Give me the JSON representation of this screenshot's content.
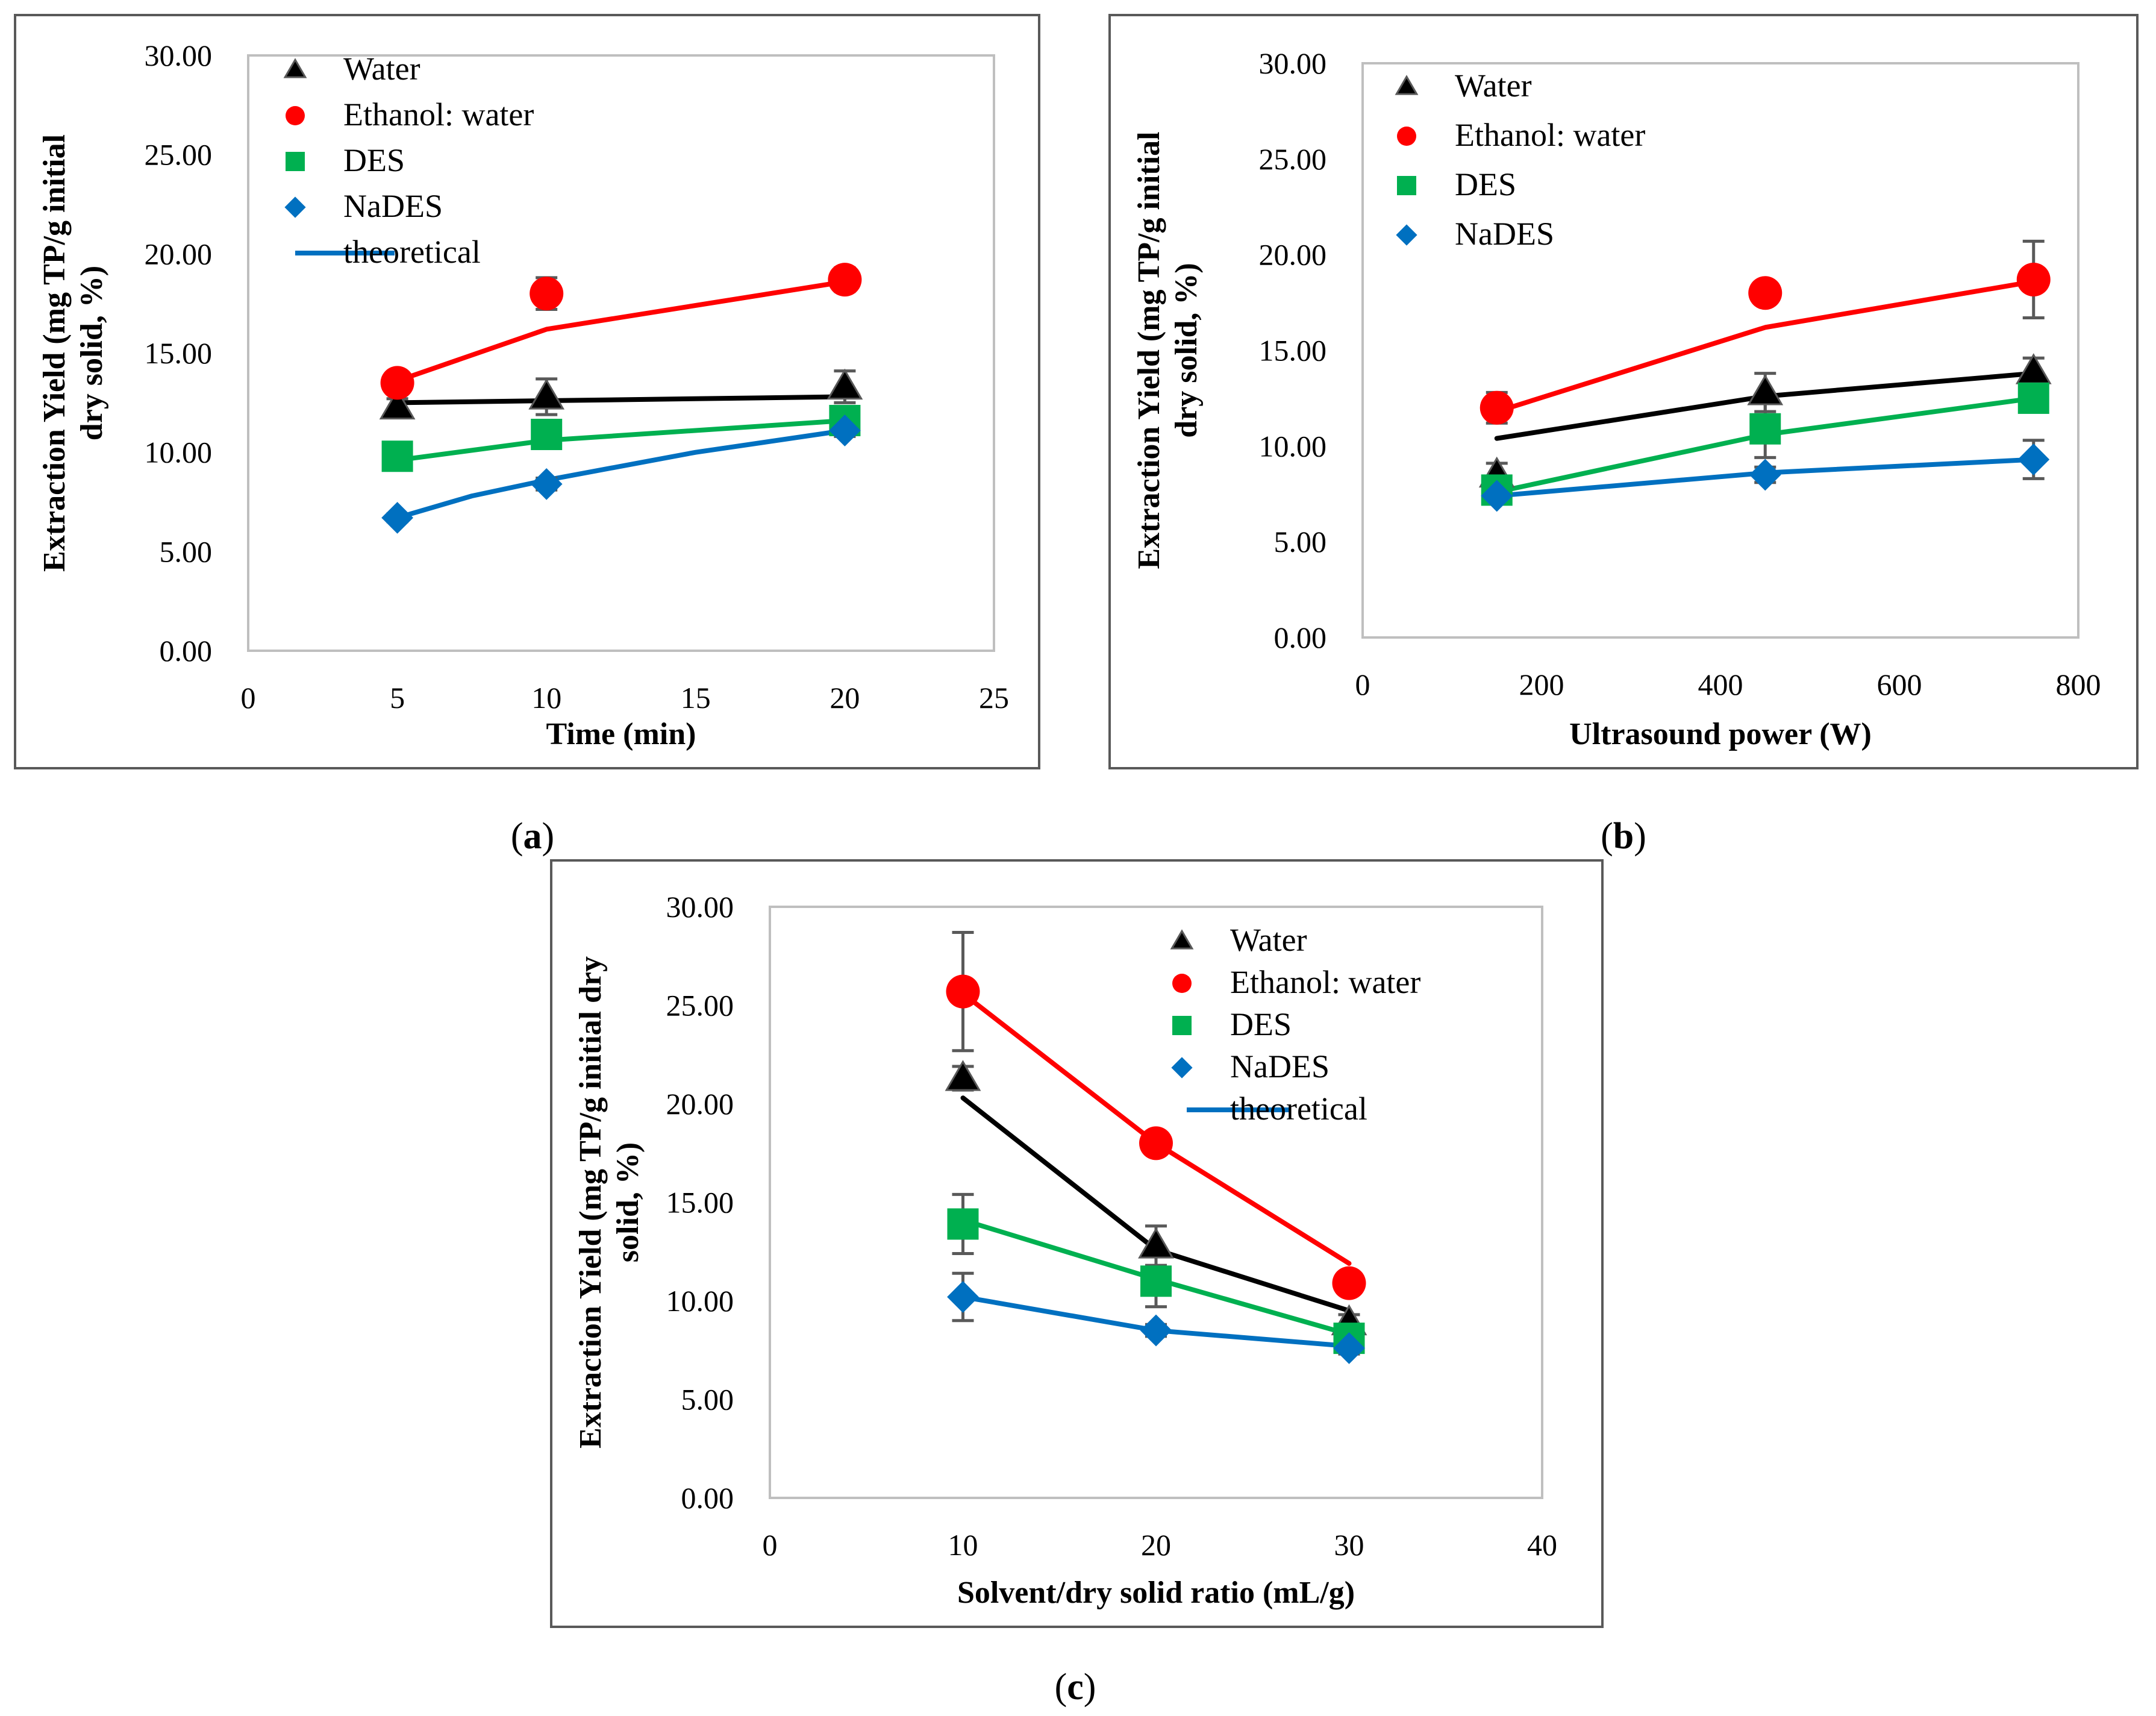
{
  "colors": {
    "water": "#000000",
    "ethanol": "#ff0000",
    "des": "#00b050",
    "nades": "#0070c0",
    "frame": "#595959",
    "plot_border": "#bfbfbf",
    "errorbar": "#595959"
  },
  "series_names": [
    "Water",
    "Ethanol: water",
    "DES",
    "NaDES"
  ],
  "theoretical_label": "theoretical",
  "chart_data": [
    {
      "id": "a",
      "type": "scatter",
      "panel_label": "a",
      "xlabel": "Time (min)",
      "ylabel_lines": [
        "Extraction Yield (mg TP/g  initial",
        "dry solid, %)"
      ],
      "xlim": [
        0,
        25
      ],
      "xticks": [
        0,
        5,
        10,
        15,
        20,
        25
      ],
      "ylim": [
        0,
        30
      ],
      "yticks": [
        "0.00",
        "5.00",
        "10.00",
        "15.00",
        "20.00",
        "25.00",
        "30.00"
      ],
      "show_theoretical_in_legend": true,
      "series": [
        {
          "name": "Water",
          "key": "water",
          "marker": "triangle",
          "x": [
            5,
            10,
            20
          ],
          "y": [
            12.3,
            12.8,
            13.3
          ],
          "err": [
            0.4,
            0.9,
            0.8
          ],
          "fit": [
            [
              5,
              12.5
            ],
            [
              10,
              12.6
            ],
            [
              20,
              12.8
            ]
          ]
        },
        {
          "name": "Ethanol: water",
          "key": "ethanol",
          "marker": "circle",
          "x": [
            5,
            10,
            20
          ],
          "y": [
            13.5,
            18.0,
            18.7
          ],
          "err": [
            0.3,
            0.8,
            0.6
          ],
          "fit": [
            [
              5,
              13.6
            ],
            [
              10,
              16.2
            ],
            [
              20,
              18.6
            ]
          ]
        },
        {
          "name": "DES",
          "key": "des",
          "marker": "square",
          "x": [
            5,
            10,
            20
          ],
          "y": [
            9.8,
            10.9,
            11.6
          ],
          "err": [
            0.3,
            0.5,
            0.4
          ],
          "fit": [
            [
              5,
              9.6
            ],
            [
              10,
              10.6
            ],
            [
              20,
              11.6
            ]
          ]
        },
        {
          "name": "NaDES",
          "key": "nades",
          "marker": "diamond",
          "x": [
            5,
            10,
            20
          ],
          "y": [
            6.7,
            8.4,
            11.1
          ],
          "err": [
            0.2,
            0.3,
            0.3
          ],
          "fit": [
            [
              5,
              6.7
            ],
            [
              7.5,
              7.8
            ],
            [
              10,
              8.6
            ],
            [
              15,
              10.0
            ],
            [
              20,
              11.1
            ]
          ]
        }
      ]
    },
    {
      "id": "b",
      "type": "scatter",
      "panel_label": "b",
      "xlabel": "Ultrasound power (W)",
      "ylabel_lines": [
        "Extraction Yield (mg TP/g initial",
        "dry solid, %)"
      ],
      "xlim": [
        0,
        800
      ],
      "xticks": [
        0,
        200,
        400,
        600,
        800
      ],
      "ylim": [
        0,
        30
      ],
      "yticks": [
        "0.00",
        "5.00",
        "10.00",
        "15.00",
        "20.00",
        "25.00",
        "30.00"
      ],
      "show_theoretical_in_legend": false,
      "series": [
        {
          "name": "Water",
          "key": "water",
          "marker": "triangle",
          "x": [
            150,
            450,
            750
          ],
          "y": [
            8.5,
            12.8,
            13.9
          ],
          "err": [
            0.6,
            1.0,
            0.7
          ],
          "fit": [
            [
              150,
              10.4
            ],
            [
              450,
              12.6
            ],
            [
              750,
              13.8
            ]
          ]
        },
        {
          "name": "Ethanol: water",
          "key": "ethanol",
          "marker": "circle",
          "x": [
            150,
            450,
            750
          ],
          "y": [
            12.0,
            18.0,
            18.7
          ],
          "err": [
            0.8,
            0.4,
            2.0
          ],
          "fit": [
            [
              150,
              11.8
            ],
            [
              450,
              16.2
            ],
            [
              750,
              18.6
            ]
          ]
        },
        {
          "name": "DES",
          "key": "des",
          "marker": "square",
          "x": [
            150,
            450,
            750
          ],
          "y": [
            7.7,
            10.9,
            12.5
          ],
          "err": [
            0.4,
            1.5,
            0.6
          ],
          "fit": [
            [
              150,
              7.6
            ],
            [
              450,
              10.6
            ],
            [
              750,
              12.5
            ]
          ]
        },
        {
          "name": "NaDES",
          "key": "nades",
          "marker": "diamond",
          "x": [
            150,
            450,
            750
          ],
          "y": [
            7.4,
            8.5,
            9.3
          ],
          "err": [
            0.3,
            0.4,
            1.0
          ],
          "fit": [
            [
              150,
              7.4
            ],
            [
              450,
              8.6
            ],
            [
              750,
              9.3
            ]
          ]
        }
      ]
    },
    {
      "id": "c",
      "type": "scatter",
      "panel_label": "c",
      "xlabel": "Solvent/dry solid ratio (mL/g)",
      "ylabel_lines": [
        "Extraction Yield (mg TP/g initial dry",
        "solid, %)"
      ],
      "xlim": [
        0,
        40
      ],
      "xticks": [
        0,
        10,
        20,
        30,
        40
      ],
      "ylim": [
        0,
        30
      ],
      "yticks": [
        "0.00",
        "5.00",
        "10.00",
        "15.00",
        "20.00",
        "25.00",
        "30.00"
      ],
      "show_theoretical_in_legend": true,
      "series": [
        {
          "name": "Water",
          "key": "water",
          "marker": "triangle",
          "x": [
            10,
            20,
            30
          ],
          "y": [
            21.3,
            12.8,
            8.9
          ],
          "err": [
            0.6,
            1.0,
            0.4
          ],
          "fit": [
            [
              10,
              20.3
            ],
            [
              20,
              12.6
            ],
            [
              30,
              9.5
            ]
          ]
        },
        {
          "name": "Ethanol: water",
          "key": "ethanol",
          "marker": "circle",
          "x": [
            10,
            20,
            30
          ],
          "y": [
            25.7,
            18.0,
            10.9
          ],
          "err": [
            3.0,
            0.4,
            0.3
          ],
          "fit": [
            [
              10,
              25.6
            ],
            [
              20,
              18.0
            ],
            [
              30,
              11.9
            ]
          ]
        },
        {
          "name": "DES",
          "key": "des",
          "marker": "square",
          "x": [
            10,
            20,
            30
          ],
          "y": [
            13.9,
            11.0,
            8.1
          ],
          "err": [
            1.5,
            1.3,
            0.3
          ],
          "fit": [
            [
              10,
              14.1
            ],
            [
              20,
              11.1
            ],
            [
              30,
              8.3
            ]
          ]
        },
        {
          "name": "NaDES",
          "key": "nades",
          "marker": "diamond",
          "x": [
            10,
            20,
            30
          ],
          "y": [
            10.2,
            8.5,
            7.6
          ],
          "err": [
            1.2,
            0.3,
            0.3
          ],
          "fit": [
            [
              10,
              10.2
            ],
            [
              20,
              8.5
            ],
            [
              30,
              7.7
            ]
          ]
        }
      ]
    }
  ]
}
